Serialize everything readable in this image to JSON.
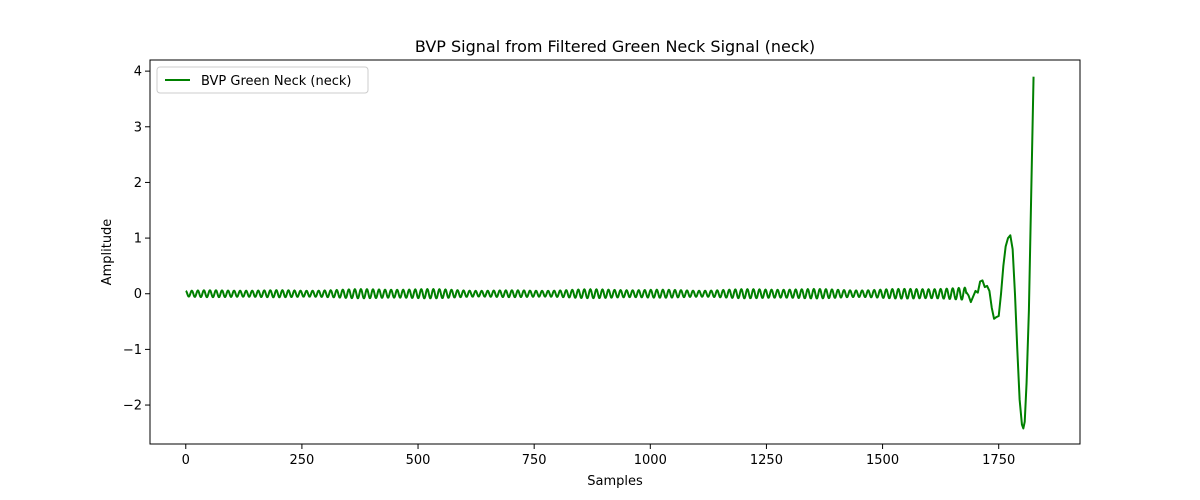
{
  "chart_data": {
    "type": "line",
    "title": "BVP Signal from Filtered Green Neck Signal (neck)",
    "xlabel": "Samples",
    "ylabel": "Amplitude",
    "xlim": [
      -77,
      1925
    ],
    "ylim": [
      -2.7,
      4.2
    ],
    "xticks": [
      0,
      250,
      500,
      750,
      1000,
      1250,
      1500,
      1750
    ],
    "xtick_labels": [
      "0",
      "250",
      "500",
      "750",
      "1000",
      "1250",
      "1500",
      "1750"
    ],
    "yticks": [
      -2,
      -1,
      0,
      1,
      2,
      3,
      4
    ],
    "ytick_labels": [
      "−2",
      "−1",
      "0",
      "1",
      "2",
      "3",
      "4"
    ],
    "grid": false,
    "legend_position": "upper-left",
    "series": [
      {
        "name": "BVP Green Neck (neck)",
        "color": "#008000",
        "generator": {
          "start": 0,
          "end": 1680,
          "period": 13,
          "amplitudes": [
            [
              0,
              0.05
            ],
            [
              250,
              0.06
            ],
            [
              300,
              0.08
            ],
            [
              500,
              0.07
            ],
            [
              750,
              0.06
            ],
            [
              1000,
              0.07
            ],
            [
              1250,
              0.07
            ],
            [
              1500,
              0.08
            ],
            [
              1680,
              0.09
            ]
          ]
        },
        "tail_points": [
          [
            1680,
            0.03
          ],
          [
            1685,
            -0.03
          ],
          [
            1690,
            -0.15
          ],
          [
            1695,
            -0.05
          ],
          [
            1700,
            0.05
          ],
          [
            1705,
            0.02
          ],
          [
            1710,
            0.22
          ],
          [
            1715,
            0.24
          ],
          [
            1720,
            0.12
          ],
          [
            1725,
            0.14
          ],
          [
            1730,
            0.05
          ],
          [
            1735,
            -0.25
          ],
          [
            1740,
            -0.45
          ],
          [
            1745,
            -0.42
          ],
          [
            1750,
            -0.4
          ],
          [
            1755,
            0.0
          ],
          [
            1760,
            0.5
          ],
          [
            1765,
            0.85
          ],
          [
            1770,
            1.0
          ],
          [
            1775,
            1.05
          ],
          [
            1780,
            0.8
          ],
          [
            1785,
            0.0
          ],
          [
            1790,
            -1.0
          ],
          [
            1795,
            -1.9
          ],
          [
            1800,
            -2.35
          ],
          [
            1803,
            -2.42
          ],
          [
            1806,
            -2.3
          ],
          [
            1810,
            -1.6
          ],
          [
            1815,
            -0.3
          ],
          [
            1820,
            1.8
          ],
          [
            1825,
            3.9
          ]
        ]
      }
    ]
  }
}
